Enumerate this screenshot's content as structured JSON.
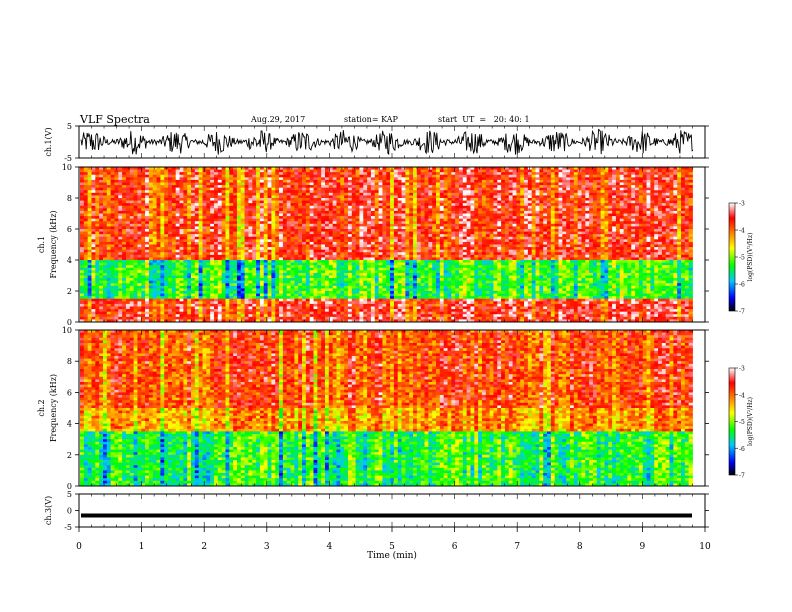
{
  "header": {
    "title": "VLF Spectra",
    "date": "Aug.29, 2017",
    "station": "station= KAP",
    "start": "start  UT  =   20: 40: 1"
  },
  "colorbar": {
    "label": "log(PSD)(V²/Hz)",
    "ticks": [
      "-3",
      "-4",
      "-5",
      "-6",
      "-7"
    ],
    "colors": [
      "#000000",
      "#0000ff",
      "#00ffff",
      "#00ff00",
      "#ffff00",
      "#ff8000",
      "#ff0000",
      "#ffffff"
    ]
  },
  "chart_data": [
    {
      "type": "line",
      "name": "ch1-waveform",
      "ylabel": "ch.1(V)",
      "ylim": [
        -5,
        5
      ],
      "yticks": [
        "5",
        "-5"
      ],
      "xlim": [
        0,
        10
      ],
      "description_values": {
        "mean": 0,
        "amplitude_range": [
          -5,
          5
        ]
      }
    },
    {
      "type": "heatmap",
      "name": "ch1-spectrogram",
      "ylabel": "ch.1\nFrequency (kHz)",
      "ylim": [
        0,
        10
      ],
      "yticks": [
        "0",
        "2",
        "4",
        "6",
        "8",
        "10"
      ],
      "xlim": [
        0,
        9.8
      ],
      "clim": [
        -7,
        -3
      ],
      "bands_khz": [
        {
          "from": 0,
          "to": 1.5,
          "log_psd": -3.5
        },
        {
          "from": 1.5,
          "to": 4,
          "log_psd": -5.2
        },
        {
          "from": 4,
          "to": 10,
          "log_psd": -3.6
        }
      ]
    },
    {
      "type": "heatmap",
      "name": "ch2-spectrogram",
      "ylabel": "ch.2\nFrequency (kHz)",
      "ylim": [
        0,
        10
      ],
      "yticks": [
        "0",
        "2",
        "4",
        "6",
        "8",
        "10"
      ],
      "xlim": [
        0,
        9.8
      ],
      "clim": [
        -7,
        -3
      ],
      "bands_khz": [
        {
          "from": 0,
          "to": 3.5,
          "log_psd": -5.3
        },
        {
          "from": 3.5,
          "to": 5,
          "log_psd": -4.2
        },
        {
          "from": 5,
          "to": 10,
          "log_psd": -3.8
        }
      ]
    },
    {
      "type": "line",
      "name": "ch3-waveform",
      "ylabel": "ch.3(V)",
      "ylim": [
        -5,
        5
      ],
      "yticks": [
        "5",
        "0",
        "-5"
      ],
      "xlim": [
        0,
        10
      ],
      "xlabel": "Time (min)",
      "xticks": [
        "0",
        "1",
        "2",
        "3",
        "4",
        "5",
        "6",
        "7",
        "8",
        "9",
        "10"
      ],
      "constant_value": -1.5
    }
  ]
}
